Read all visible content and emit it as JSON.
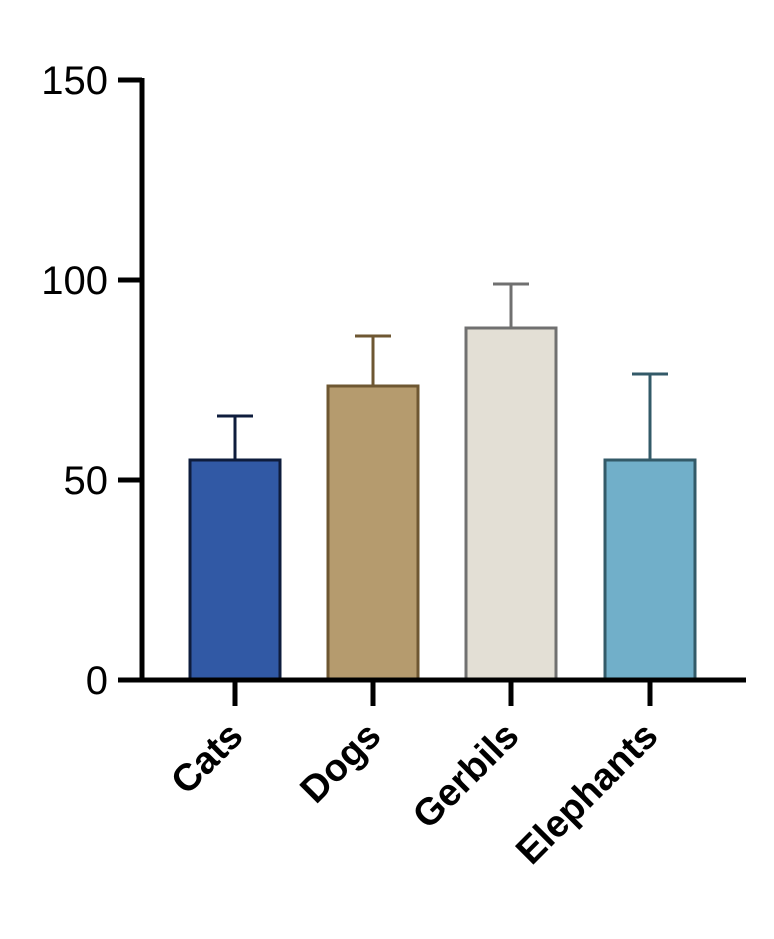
{
  "chart_data": {
    "type": "bar",
    "title": "",
    "xlabel": "",
    "ylabel": "",
    "categories": [
      "Cats",
      "Dogs",
      "Gerbils",
      "Elephants"
    ],
    "values": [
      55,
      73.5,
      88,
      55
    ],
    "error_upper": [
      66,
      86,
      99,
      76.5
    ],
    "ylim": [
      0,
      150
    ],
    "yticks": [
      0,
      50,
      100,
      150
    ],
    "ytick_labels": [
      "0",
      "50",
      "100",
      "150"
    ],
    "grid": false,
    "legend": "none",
    "colors": {
      "fills": [
        "#3159a5",
        "#b59b6e",
        "#e3dfd5",
        "#71afc9"
      ],
      "strokes": [
        "#0e1c3c",
        "#6e5732",
        "#707070",
        "#335a68"
      ],
      "axis": "#000000"
    }
  }
}
